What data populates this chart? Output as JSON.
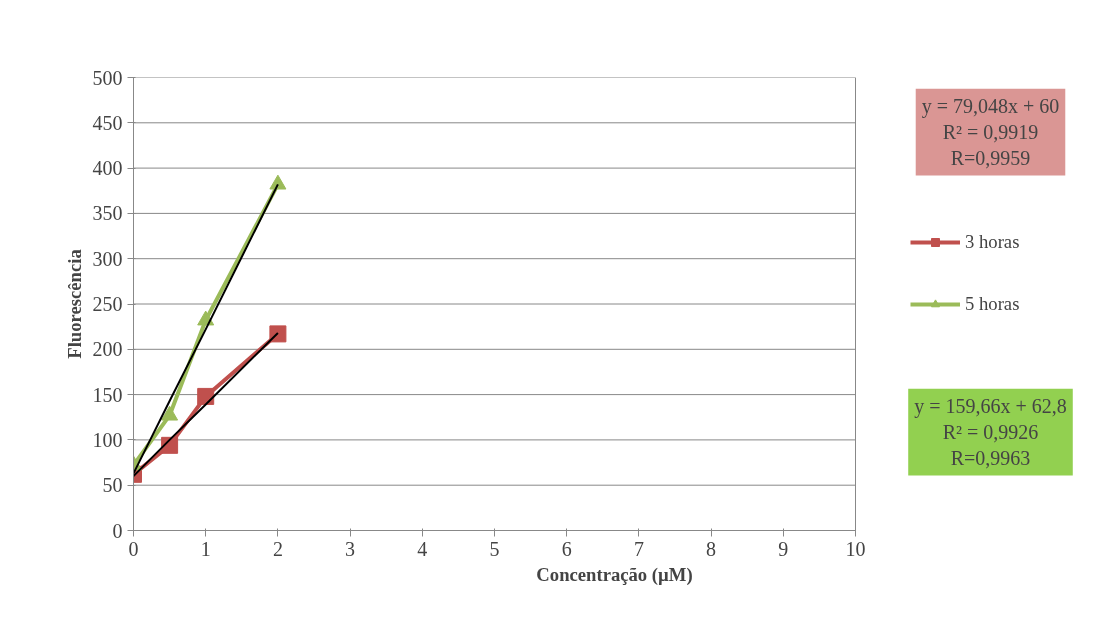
{
  "chart_data": {
    "type": "line",
    "xlabel": "Concentração (µM)",
    "ylabel": "Fluorescência",
    "x": [
      0,
      0.5,
      1,
      2
    ],
    "series": [
      {
        "name": "3 horas",
        "color": "#c0504d",
        "values": [
          62,
          94,
          148,
          217
        ],
        "marker": "square"
      },
      {
        "name": "5 horas",
        "color": "#9bbb59",
        "values": [
          72,
          127,
          232,
          382
        ],
        "marker": "triangle"
      },
      {
        "type": "line",
        "color": "#000000",
        "values": [
          60,
          100,
          139,
          218
        ],
        "marker": "none"
      },
      {
        "type": "line",
        "color": "#000000",
        "values": [
          63,
          143,
          222,
          382
        ],
        "marker": "none"
      }
    ],
    "annotations": [
      "y = 79,048x + 60\nR² = 0,9919\nR=0,9959",
      "y = 159,66x + 62,8\nR² = 0,9926\nR=0,9963"
    ],
    "xlim": [
      0,
      10
    ],
    "xticks": [
      0,
      1,
      2,
      3,
      4,
      5,
      6,
      7,
      8,
      9,
      10
    ],
    "ylim": [
      0,
      500
    ],
    "yticks": [
      0,
      50,
      100,
      150,
      200,
      250,
      300,
      350,
      400,
      450,
      500
    ],
    "grid": "y",
    "legend": "right"
  }
}
